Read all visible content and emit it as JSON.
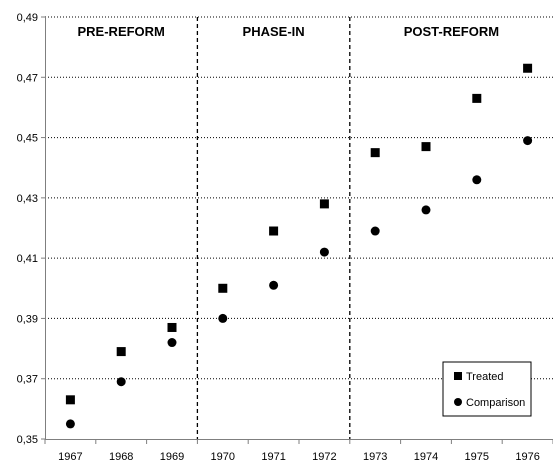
{
  "chart_data": {
    "type": "scatter",
    "title": "",
    "xlabel": "",
    "ylabel": "",
    "ylim": [
      0.35,
      0.49
    ],
    "y_ticks": [
      "0,35",
      "0,37",
      "0,39",
      "0,41",
      "0,43",
      "0,45",
      "0,47",
      "0,49"
    ],
    "y_tick_values": [
      0.35,
      0.37,
      0.39,
      0.41,
      0.43,
      0.45,
      0.47,
      0.49
    ],
    "categories": [
      "1967",
      "1968",
      "1969",
      "1970",
      "1971",
      "1972",
      "1973",
      "1974",
      "1975",
      "1976"
    ],
    "grid": "horizontal dotted",
    "legend_position": "bottom-right",
    "periods": [
      {
        "label": "PRE-REFORM",
        "start": "1967",
        "end": "1969"
      },
      {
        "label": "PHASE-IN",
        "start": "1970",
        "end": "1972"
      },
      {
        "label": "POST-REFORM",
        "start": "1973",
        "end": "1976"
      }
    ],
    "series": [
      {
        "name": "Treated",
        "marker": "square",
        "color": "#000000",
        "values": [
          0.363,
          0.379,
          0.387,
          0.4,
          0.419,
          0.428,
          0.445,
          0.447,
          0.463,
          0.473
        ]
      },
      {
        "name": "Comparison",
        "marker": "circle",
        "color": "#000000",
        "values": [
          0.355,
          0.369,
          0.382,
          0.39,
          0.401,
          0.412,
          0.419,
          0.426,
          0.436,
          0.449
        ]
      }
    ]
  }
}
